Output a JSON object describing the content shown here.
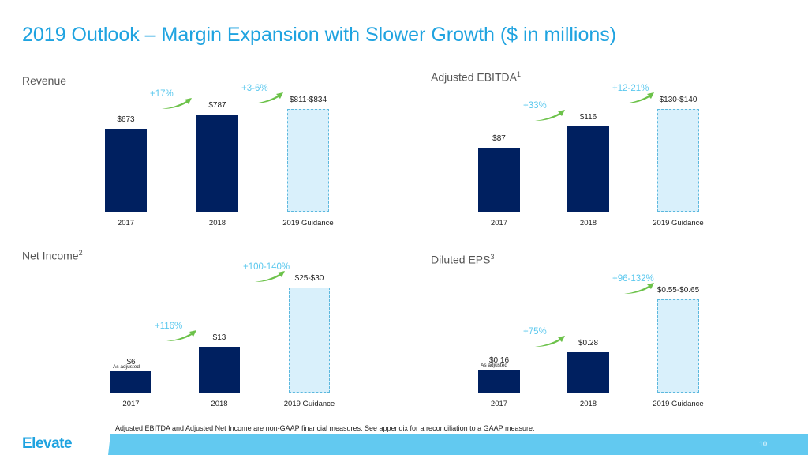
{
  "title": "2019 Outlook – Margin Expansion with Slower Growth ($ in millions)",
  "footnote": "Adjusted EBITDA and Adjusted Net Income are non-GAAP financial measures. See appendix for a reconciliation to a GAAP measure.",
  "logo": "Elevate",
  "page_number": "10",
  "colors": {
    "actual": "#002060",
    "guidance": "#d9f0fb",
    "growth_text": "#5bc8ee",
    "arrow": "#6cc24a",
    "title": "#1fa3e0"
  },
  "chart_data": [
    {
      "type": "bar",
      "title": "Revenue",
      "title_sup": "",
      "categories": [
        "2017",
        "2018",
        "2019 Guidance"
      ],
      "values": [
        673,
        787,
        834
      ],
      "guidance_range": [
        811,
        834
      ],
      "labels": [
        "$673",
        "$787",
        "$811-$834"
      ],
      "growth": [
        "+17%",
        "+3-6%"
      ],
      "notes": [
        "",
        ""
      ]
    },
    {
      "type": "bar",
      "title": "Adjusted EBITDA",
      "title_sup": "1",
      "categories": [
        "2017",
        "2018",
        "2019 Guidance"
      ],
      "values": [
        87,
        116,
        140
      ],
      "guidance_range": [
        130,
        140
      ],
      "labels": [
        "$87",
        "$116",
        "$130-$140"
      ],
      "growth": [
        "+33%",
        "+12-21%"
      ],
      "notes": [
        "",
        ""
      ]
    },
    {
      "type": "bar",
      "title": "Net Income",
      "title_sup": "2",
      "categories": [
        "2017",
        "2018",
        "2019 Guidance"
      ],
      "values": [
        6,
        13,
        30
      ],
      "guidance_range": [
        25,
        30
      ],
      "labels": [
        "$6",
        "$13",
        "$25-$30"
      ],
      "growth": [
        "+116%",
        "+100-140%"
      ],
      "notes": [
        "As adjusted",
        ""
      ]
    },
    {
      "type": "bar",
      "title": "Diluted EPS",
      "title_sup": "3",
      "categories": [
        "2017",
        "2018",
        "2019 Guidance"
      ],
      "values": [
        0.16,
        0.28,
        0.65
      ],
      "guidance_range": [
        0.55,
        0.65
      ],
      "labels": [
        "$0.16",
        "$0.28",
        "$0.55-$0.65"
      ],
      "growth": [
        "+75%",
        "+96-132%"
      ],
      "notes": [
        "As adjusted",
        ""
      ]
    }
  ]
}
